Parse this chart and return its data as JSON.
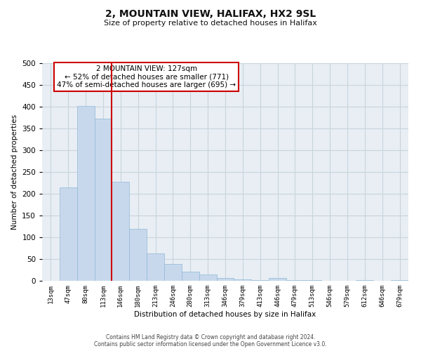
{
  "title": "2, MOUNTAIN VIEW, HALIFAX, HX2 9SL",
  "subtitle": "Size of property relative to detached houses in Halifax",
  "xlabel": "Distribution of detached houses by size in Halifax",
  "ylabel": "Number of detached properties",
  "bar_color": "#c8d8ec",
  "bar_edge_color": "#8fb8d8",
  "bar_values": [
    0,
    215,
    402,
    372,
    228,
    119,
    63,
    39,
    21,
    14,
    7,
    3,
    2,
    6,
    2,
    1,
    0,
    0,
    1,
    0,
    1
  ],
  "bin_labels": [
    "13sqm",
    "47sqm",
    "80sqm",
    "113sqm",
    "146sqm",
    "180sqm",
    "213sqm",
    "246sqm",
    "280sqm",
    "313sqm",
    "346sqm",
    "379sqm",
    "413sqm",
    "446sqm",
    "479sqm",
    "513sqm",
    "546sqm",
    "579sqm",
    "612sqm",
    "646sqm",
    "679sqm"
  ],
  "ylim": [
    0,
    500
  ],
  "yticks": [
    0,
    50,
    100,
    150,
    200,
    250,
    300,
    350,
    400,
    450,
    500
  ],
  "property_bin_index": 3,
  "vline_color": "#cc0000",
  "annotation_box_color": "#cc0000",
  "annotation_lines": [
    "2 MOUNTAIN VIEW: 127sqm",
    "← 52% of detached houses are smaller (771)",
    "47% of semi-detached houses are larger (695) →"
  ],
  "grid_color": "#c8d4de",
  "background_color": "#e8eef4",
  "footer_line1": "Contains HM Land Registry data © Crown copyright and database right 2024.",
  "footer_line2": "Contains public sector information licensed under the Open Government Licence v3.0."
}
